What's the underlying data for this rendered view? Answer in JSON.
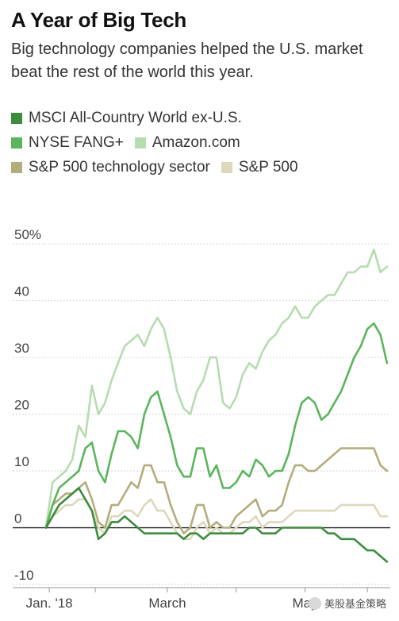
{
  "chart_data": {
    "type": "line",
    "title": "A Year of Big Tech",
    "subtitle": "Big technology companies helped the U.S. market beat the rest of the world this year.",
    "xlabel": "",
    "ylabel": "",
    "x_tick_labels": [
      "Jan. '18",
      "March",
      "May"
    ],
    "y_tick_labels": [
      "50%",
      "40",
      "30",
      "20",
      "10",
      "0",
      "-10"
    ],
    "y_ticks": [
      50,
      40,
      30,
      20,
      10,
      0,
      -10
    ],
    "ylim": [
      -10,
      51
    ],
    "xlim": [
      0,
      105
    ],
    "x_tick_positions": [
      1,
      37,
      79
    ],
    "grid": true,
    "legend_position": "top",
    "x": [
      0,
      2,
      4,
      6,
      8,
      10,
      12,
      14,
      16,
      18,
      20,
      22,
      24,
      26,
      28,
      30,
      32,
      34,
      36,
      38,
      40,
      42,
      44,
      46,
      48,
      50,
      52,
      54,
      56,
      58,
      60,
      62,
      64,
      66,
      68,
      70,
      72,
      74,
      76,
      78,
      80,
      82,
      84,
      86,
      88,
      90,
      92,
      94,
      96,
      98,
      100,
      102,
      104
    ],
    "series": [
      {
        "name": "MSCI All-Country World ex-U.S.",
        "color": "#3d8c3d",
        "values": [
          0,
          2,
          4,
          5,
          6,
          7,
          5,
          3,
          -2,
          -1,
          1,
          1,
          2,
          1,
          0,
          -1,
          -1,
          -1,
          -1,
          -1,
          -1,
          -2,
          -1,
          -1,
          -2,
          -1,
          -1,
          -1,
          -1,
          -1,
          -1,
          0,
          0,
          -1,
          -1,
          -1,
          0,
          0,
          0,
          0,
          0,
          0,
          0,
          -1,
          -1,
          -2,
          -2,
          -2,
          -3,
          -4,
          -4,
          -5,
          -6
        ]
      },
      {
        "name": "NYSE FANG+",
        "color": "#5bb55b",
        "values": [
          0,
          4,
          7,
          8,
          9,
          10,
          14,
          15,
          10,
          8,
          13,
          17,
          17,
          16,
          14,
          20,
          23,
          24,
          20,
          16,
          11,
          9,
          9,
          14,
          14,
          9,
          11,
          7,
          7,
          8,
          10,
          9,
          12,
          11,
          9,
          10,
          10,
          13,
          18,
          22,
          23,
          22,
          19,
          20,
          22,
          24,
          27,
          30,
          32,
          35,
          36,
          34,
          29
        ]
      },
      {
        "name": "Amazon.com",
        "color": "#b6dcb0",
        "values": [
          0,
          8,
          9,
          10,
          12,
          18,
          16,
          25,
          20,
          22,
          26,
          29,
          32,
          33,
          34,
          32,
          35,
          37,
          35,
          30,
          24,
          21,
          20,
          24,
          26,
          30,
          30,
          22,
          21,
          23,
          27,
          29,
          28,
          31,
          33,
          34,
          36,
          37,
          39,
          37,
          37,
          39,
          40,
          41,
          41,
          43,
          45,
          45,
          46,
          46,
          49,
          45,
          46
        ]
      },
      {
        "name": "S&P 500 technology sector",
        "color": "#b3ad7e",
        "values": [
          0,
          4,
          5,
          6,
          6,
          7,
          8,
          5,
          1,
          0,
          4,
          4,
          6,
          8,
          7,
          11,
          11,
          8,
          8,
          4,
          1,
          -1,
          0,
          4,
          4,
          0,
          1,
          0,
          0,
          2,
          3,
          4,
          5,
          2,
          3,
          3,
          4,
          8,
          11,
          11,
          10,
          10,
          11,
          12,
          13,
          14,
          14,
          14,
          14,
          14,
          14,
          11,
          10
        ]
      },
      {
        "name": "S&P 500",
        "color": "#ddd8bb",
        "values": [
          0,
          2,
          3,
          4,
          4,
          5,
          5,
          3,
          0,
          -1,
          2,
          2,
          3,
          3,
          2,
          4,
          5,
          3,
          3,
          1,
          -1,
          -2,
          -2,
          0,
          1,
          -1,
          0,
          -1,
          -1,
          0,
          1,
          1,
          2,
          0,
          1,
          1,
          1,
          2,
          3,
          3,
          3,
          3,
          3,
          3,
          3,
          4,
          4,
          4,
          4,
          4,
          4,
          2,
          2
        ]
      }
    ]
  },
  "watermark_text": "美股基金策略"
}
